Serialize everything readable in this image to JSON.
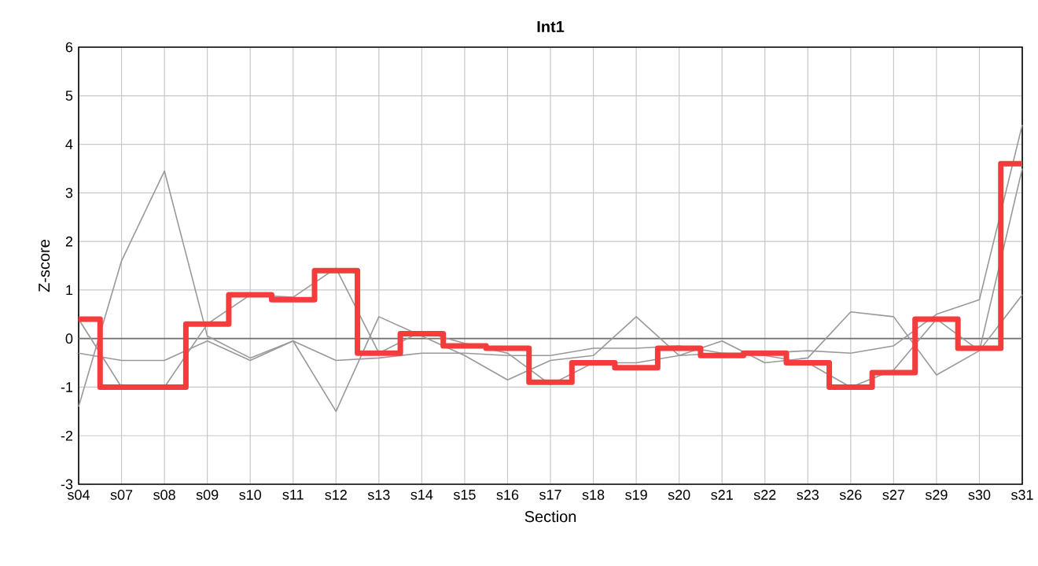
{
  "chart_data": {
    "type": "line",
    "title": "Int1",
    "xlabel": "Section",
    "ylabel": "Z-score",
    "categories": [
      "s04",
      "s07",
      "s08",
      "s09",
      "s10",
      "s11",
      "s12",
      "s13",
      "s14",
      "s15",
      "s16",
      "s17",
      "s18",
      "s19",
      "s20",
      "s21",
      "s22",
      "s23",
      "s26",
      "s27",
      "s29",
      "s30",
      "s31"
    ],
    "ylim": [
      -3,
      6
    ],
    "yticks": [
      -3,
      -2,
      -1,
      0,
      1,
      2,
      3,
      4,
      5,
      6
    ],
    "grid": true,
    "ref_lines": [
      {
        "axis": "y",
        "value": 0,
        "color": "#707070"
      }
    ],
    "series": [
      {
        "color": "#999999",
        "values": [
          -1.4,
          1.6,
          3.45,
          0.05,
          -0.4,
          -0.05,
          -1.5,
          0.45,
          0.05,
          -0.35,
          -0.85,
          -0.45,
          -0.35,
          0.45,
          -0.35,
          -0.05,
          -0.5,
          -0.4,
          0.55,
          0.45,
          -0.75,
          -0.25,
          0.9
        ]
      },
      {
        "color": "#999999",
        "values": [
          0.4,
          -1.0,
          -1.0,
          0.3,
          0.9,
          0.85,
          1.45,
          -0.3,
          0.15,
          -0.1,
          -0.3,
          -0.95,
          -0.5,
          -0.5,
          -0.35,
          -0.3,
          -0.35,
          -0.5,
          -1.0,
          -0.65,
          0.4,
          -0.25,
          3.5
        ]
      },
      {
        "color": "#999999",
        "values": [
          -0.3,
          -0.45,
          -0.45,
          -0.05,
          -0.45,
          -0.05,
          -0.45,
          -0.4,
          -0.3,
          -0.3,
          -0.35,
          -0.35,
          -0.2,
          -0.2,
          -0.15,
          -0.3,
          -0.3,
          -0.25,
          -0.3,
          -0.15,
          0.5,
          0.8,
          4.4
        ]
      },
      {
        "type": "step",
        "color": "#f53c3c",
        "values": [
          0.4,
          -1.0,
          -1.0,
          0.3,
          0.9,
          0.8,
          1.4,
          -0.3,
          0.1,
          -0.15,
          -0.2,
          -0.9,
          -0.5,
          -0.6,
          -0.2,
          -0.35,
          -0.3,
          -0.5,
          -1.0,
          -0.7,
          0.4,
          -0.2,
          3.6
        ]
      }
    ]
  }
}
